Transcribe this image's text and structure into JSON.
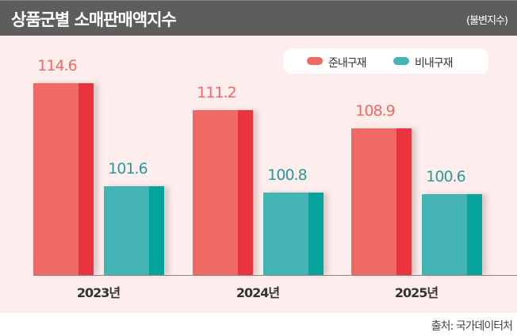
{
  "header": {
    "title": "상품군별 소매판매액지수",
    "unit": "(불변지수)"
  },
  "source": "출처: 국가데이터처",
  "colors": {
    "red": "#ef6965",
    "red_dark": "#e8343c",
    "teal": "#43b3b3",
    "teal_dark": "#05a39c"
  },
  "chart_data": {
    "type": "bar",
    "title": "상품군별 소매판매액지수",
    "categories": [
      "2023년",
      "2024년",
      "2025년"
    ],
    "series": [
      {
        "name": "준내구재",
        "values": [
          114.6,
          111.2,
          108.9
        ],
        "labels": [
          "114.6",
          "111.2",
          "108.9"
        ]
      },
      {
        "name": "비내구재",
        "values": [
          101.6,
          100.8,
          100.6
        ],
        "labels": [
          "101.6",
          "100.8",
          "100.6"
        ]
      }
    ],
    "ylim": [
      90.4,
      120
    ],
    "legend": "top-right",
    "grid": false
  }
}
